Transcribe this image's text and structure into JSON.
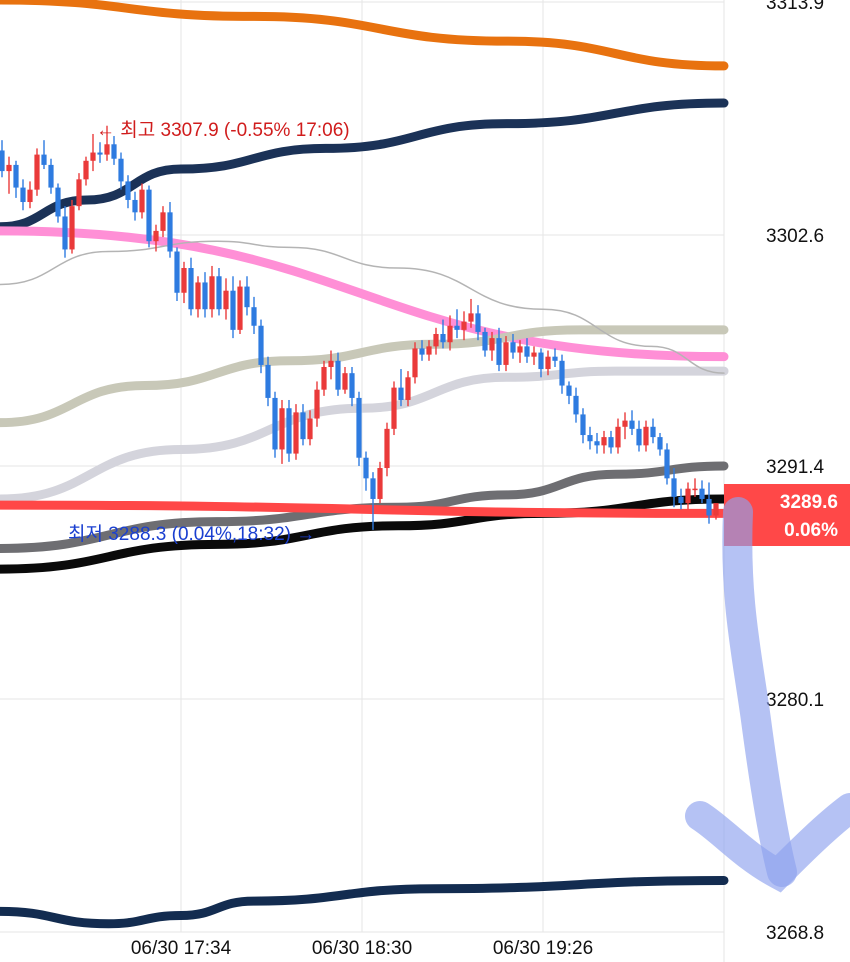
{
  "chart_data": {
    "type": "candlestick",
    "x_ticks": [
      "06/30 17:34",
      "06/30 18:30",
      "06/30 19:26"
    ],
    "y_ticks": [
      3313.9,
      3302.6,
      3291.4,
      3280.1,
      3268.8
    ],
    "y_tick_labels": [
      "3313.9",
      "3302.6",
      "3291.4",
      "3280.1",
      "3268.8"
    ],
    "ylim": [
      3268.8,
      3313.9
    ],
    "grid": true,
    "annotations": {
      "high": "← 최고 3307.9 (-0.55% 17:06)",
      "low": "최저 3288.3 (0.04%,18:32) →"
    },
    "current_price": {
      "value": "3289.6",
      "change": "0.06%"
    },
    "candles": [
      [
        3306.7,
        3307.2,
        3305.4,
        3305.7
      ],
      [
        3305.7,
        3306.4,
        3304.6,
        3306.0
      ],
      [
        3306.0,
        3306.2,
        3304.4,
        3304.9
      ],
      [
        3304.9,
        3305.3,
        3303.8,
        3304.2
      ],
      [
        3304.2,
        3305.2,
        3303.9,
        3304.8
      ],
      [
        3304.8,
        3306.8,
        3304.5,
        3306.5
      ],
      [
        3306.5,
        3307.2,
        3305.8,
        3306.0
      ],
      [
        3306.0,
        3306.3,
        3304.6,
        3304.9
      ],
      [
        3304.9,
        3305.1,
        3303.2,
        3303.5
      ],
      [
        3303.5,
        3304.0,
        3301.5,
        3301.9
      ],
      [
        3301.9,
        3304.3,
        3301.7,
        3304.0
      ],
      [
        3304.0,
        3305.6,
        3303.8,
        3305.3
      ],
      [
        3305.3,
        3306.4,
        3305.0,
        3306.2
      ],
      [
        3306.2,
        3307.5,
        3305.7,
        3306.6
      ],
      [
        3306.6,
        3307.1,
        3306.1,
        3306.5
      ],
      [
        3306.5,
        3307.9,
        3306.2,
        3307.0
      ],
      [
        3307.0,
        3307.4,
        3306.0,
        3306.3
      ],
      [
        3306.3,
        3306.6,
        3304.8,
        3305.2
      ],
      [
        3305.2,
        3305.5,
        3303.9,
        3304.3
      ],
      [
        3304.3,
        3304.7,
        3303.3,
        3303.7
      ],
      [
        3303.7,
        3305.1,
        3303.4,
        3304.8
      ],
      [
        3304.8,
        3305.0,
        3302.0,
        3302.3
      ],
      [
        3302.3,
        3303.1,
        3301.8,
        3302.8
      ],
      [
        3302.8,
        3304.0,
        3302.5,
        3303.7
      ],
      [
        3303.7,
        3304.2,
        3301.5,
        3301.8
      ],
      [
        3301.8,
        3302.0,
        3299.4,
        3299.8
      ],
      [
        3299.8,
        3301.3,
        3299.3,
        3301.0
      ],
      [
        3301.0,
        3301.5,
        3298.7,
        3299.0
      ],
      [
        3299.0,
        3300.6,
        3298.6,
        3300.3
      ],
      [
        3300.3,
        3300.8,
        3298.6,
        3299.0
      ],
      [
        3299.0,
        3301.1,
        3298.6,
        3300.6
      ],
      [
        3300.6,
        3301.0,
        3298.7,
        3299.0
      ],
      [
        3299.0,
        3300.5,
        3298.5,
        3299.9
      ],
      [
        3299.9,
        3300.6,
        3297.6,
        3298.0
      ],
      [
        3298.0,
        3300.4,
        3297.8,
        3300.1
      ],
      [
        3300.1,
        3300.6,
        3298.7,
        3299.1
      ],
      [
        3299.1,
        3299.6,
        3297.8,
        3298.2
      ],
      [
        3298.2,
        3298.5,
        3295.9,
        3296.3
      ],
      [
        3296.3,
        3296.7,
        3294.3,
        3294.7
      ],
      [
        3294.7,
        3295.0,
        3291.8,
        3292.2
      ],
      [
        3292.2,
        3294.6,
        3291.5,
        3294.2
      ],
      [
        3294.2,
        3294.6,
        3291.6,
        3292.0
      ],
      [
        3292.0,
        3294.4,
        3291.7,
        3294.0
      ],
      [
        3294.0,
        3294.4,
        3292.4,
        3292.7
      ],
      [
        3292.7,
        3294.1,
        3292.4,
        3293.7
      ],
      [
        3293.7,
        3295.5,
        3293.3,
        3295.1
      ],
      [
        3295.1,
        3296.5,
        3294.8,
        3296.2
      ],
      [
        3296.2,
        3297.0,
        3295.6,
        3296.5
      ],
      [
        3296.5,
        3296.9,
        3294.8,
        3295.1
      ],
      [
        3295.1,
        3296.2,
        3294.9,
        3295.9
      ],
      [
        3295.9,
        3296.2,
        3294.3,
        3294.7
      ],
      [
        3294.7,
        3295.0,
        3291.4,
        3291.8
      ],
      [
        3291.8,
        3292.1,
        3290.2,
        3290.8
      ],
      [
        3290.8,
        3291.1,
        3288.3,
        3289.8
      ],
      [
        3289.8,
        3291.6,
        3289.6,
        3291.3
      ],
      [
        3291.3,
        3293.5,
        3290.9,
        3293.2
      ],
      [
        3293.2,
        3295.5,
        3292.9,
        3295.2
      ],
      [
        3295.2,
        3296.1,
        3294.3,
        3294.6
      ],
      [
        3294.6,
        3296.0,
        3294.3,
        3295.7
      ],
      [
        3295.7,
        3297.4,
        3295.4,
        3297.1
      ],
      [
        3297.1,
        3297.5,
        3296.5,
        3296.8
      ],
      [
        3296.8,
        3297.5,
        3296.5,
        3297.2
      ],
      [
        3297.2,
        3298.1,
        3296.8,
        3297.8
      ],
      [
        3297.8,
        3298.5,
        3297.1,
        3297.4
      ],
      [
        3297.4,
        3298.7,
        3297.0,
        3298.2
      ],
      [
        3298.2,
        3299.0,
        3297.6,
        3298.0
      ],
      [
        3298.0,
        3298.9,
        3297.5,
        3298.4
      ],
      [
        3298.4,
        3299.5,
        3298.1,
        3298.8
      ],
      [
        3298.8,
        3299.2,
        3297.5,
        3297.9
      ],
      [
        3297.9,
        3298.1,
        3296.7,
        3297.0
      ],
      [
        3297.0,
        3297.9,
        3296.5,
        3297.6
      ],
      [
        3297.6,
        3298.1,
        3296.0,
        3296.3
      ],
      [
        3296.3,
        3297.7,
        3296.0,
        3297.4
      ],
      [
        3297.4,
        3297.8,
        3296.6,
        3296.9
      ],
      [
        3296.9,
        3297.5,
        3296.4,
        3297.2
      ],
      [
        3297.2,
        3297.6,
        3296.4,
        3296.7
      ],
      [
        3296.7,
        3297.2,
        3296.3,
        3296.9
      ],
      [
        3296.9,
        3297.1,
        3295.7,
        3296.1
      ],
      [
        3296.1,
        3297.0,
        3295.8,
        3296.7
      ],
      [
        3296.7,
        3297.1,
        3296.2,
        3296.5
      ],
      [
        3296.5,
        3296.8,
        3294.9,
        3295.3
      ],
      [
        3295.3,
        3295.5,
        3294.4,
        3294.8
      ],
      [
        3294.8,
        3295.2,
        3293.5,
        3293.9
      ],
      [
        3293.9,
        3294.2,
        3292.5,
        3292.9
      ],
      [
        3292.9,
        3293.3,
        3292.2,
        3292.6
      ],
      [
        3292.6,
        3293.0,
        3292.0,
        3292.4
      ],
      [
        3292.4,
        3293.1,
        3292.0,
        3292.8
      ],
      [
        3292.8,
        3293.1,
        3292.0,
        3292.3
      ],
      [
        3292.3,
        3293.7,
        3292.0,
        3293.3
      ],
      [
        3293.3,
        3294.0,
        3292.7,
        3293.6
      ],
      [
        3293.6,
        3294.1,
        3292.9,
        3293.2
      ],
      [
        3293.2,
        3293.6,
        3292.1,
        3292.4
      ],
      [
        3292.4,
        3293.6,
        3292.1,
        3293.3
      ],
      [
        3293.3,
        3293.7,
        3292.5,
        3292.8
      ],
      [
        3292.8,
        3293.0,
        3291.9,
        3292.2
      ],
      [
        3292.2,
        3292.5,
        3290.5,
        3290.8
      ],
      [
        3290.8,
        3291.3,
        3289.4,
        3289.9
      ],
      [
        3289.9,
        3290.3,
        3289.3,
        3289.6
      ],
      [
        3289.6,
        3290.6,
        3289.3,
        3290.3
      ],
      [
        3290.3,
        3290.8,
        3289.9,
        3290.3
      ],
      [
        3290.3,
        3290.7,
        3289.6,
        3289.8
      ],
      [
        3289.8,
        3290.6,
        3288.6,
        3289.0
      ],
      [
        3289.0,
        3289.5,
        3288.8,
        3289.6
      ]
    ],
    "overlays": [
      {
        "color": "#e8720f",
        "points": [
          [
            0,
            3314.0
          ],
          [
            0.35,
            3313.2
          ],
          [
            0.7,
            3312.0
          ],
          [
            1,
            3310.8
          ]
        ]
      },
      {
        "color": "#1b3257",
        "points": [
          [
            0,
            3303.0
          ],
          [
            0.12,
            3304.3
          ],
          [
            0.25,
            3305.8
          ],
          [
            0.45,
            3306.8
          ],
          [
            0.7,
            3308.0
          ],
          [
            1,
            3309.0
          ]
        ]
      },
      {
        "color": "#ff8fd6",
        "points": [
          [
            0,
            3302.8
          ],
          [
            1,
            3296.7
          ]
        ]
      },
      {
        "color": "#c8c8b8",
        "points": [
          [
            0,
            3293.5
          ],
          [
            0.2,
            3295.3
          ],
          [
            0.4,
            3296.5
          ],
          [
            0.6,
            3297.3
          ],
          [
            0.8,
            3298.0
          ],
          [
            1,
            3298.0
          ]
        ]
      },
      {
        "color": "#d4d4dc",
        "points": [
          [
            0,
            3289.8
          ],
          [
            0.25,
            3292.2
          ],
          [
            0.5,
            3294.2
          ],
          [
            0.7,
            3295.7
          ],
          [
            0.85,
            3296.0
          ],
          [
            1,
            3296.0
          ]
        ]
      },
      {
        "color": "#6e6e72",
        "points": [
          [
            0,
            3287.4
          ],
          [
            0.3,
            3288.7
          ],
          [
            0.55,
            3289.4
          ],
          [
            0.7,
            3290.0
          ],
          [
            0.85,
            3291.0
          ],
          [
            1,
            3291.4
          ]
        ]
      },
      {
        "color": "#0a0a0a",
        "points": [
          [
            0,
            3286.4
          ],
          [
            0.3,
            3287.6
          ],
          [
            0.55,
            3288.5
          ],
          [
            0.75,
            3289.1
          ],
          [
            1,
            3289.8
          ]
        ]
      },
      {
        "color": "#ff4747",
        "points": [
          [
            0,
            3289.5
          ],
          [
            1,
            3289.1
          ]
        ]
      },
      {
        "color": "#b4b4b4",
        "points": [
          [
            0,
            3300.2
          ],
          [
            0.15,
            3301.8
          ],
          [
            0.3,
            3302.3
          ],
          [
            0.4,
            3302.0
          ],
          [
            0.55,
            3301.0
          ],
          [
            0.75,
            3299.0
          ],
          [
            0.9,
            3297.2
          ],
          [
            1,
            3295.9
          ]
        ]
      },
      {
        "color": "#132c50",
        "points": [
          [
            0,
            3269.8
          ],
          [
            0.15,
            3269.2
          ],
          [
            0.25,
            3269.6
          ],
          [
            0.35,
            3270.3
          ],
          [
            0.6,
            3270.9
          ],
          [
            1,
            3271.3
          ]
        ]
      }
    ]
  }
}
